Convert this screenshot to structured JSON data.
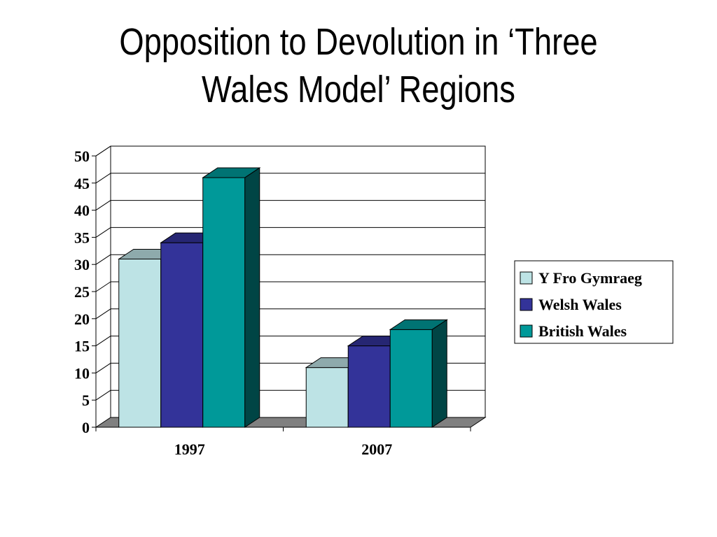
{
  "title_lines": [
    "Opposition to Devolution in ‘Three",
    "Wales Model’ Regions"
  ],
  "chart_data": {
    "type": "bar",
    "title": "Opposition to Devolution in ‘Three Wales Model’ Regions",
    "categories": [
      "1997",
      "2007"
    ],
    "series": [
      {
        "name": "Y Fro Gymraeg",
        "values": [
          31,
          11
        ],
        "color": "#BDE3E5"
      },
      {
        "name": "Welsh Wales",
        "values": [
          34,
          15
        ],
        "color": "#333399"
      },
      {
        "name": "British Wales",
        "values": [
          46,
          18
        ],
        "color": "#009999"
      }
    ],
    "ylim": [
      0,
      50
    ],
    "yticks": [
      0,
      5,
      10,
      15,
      20,
      25,
      30,
      35,
      40,
      45,
      50
    ],
    "grid": true,
    "legend": "right",
    "style": "3d-clustered"
  }
}
